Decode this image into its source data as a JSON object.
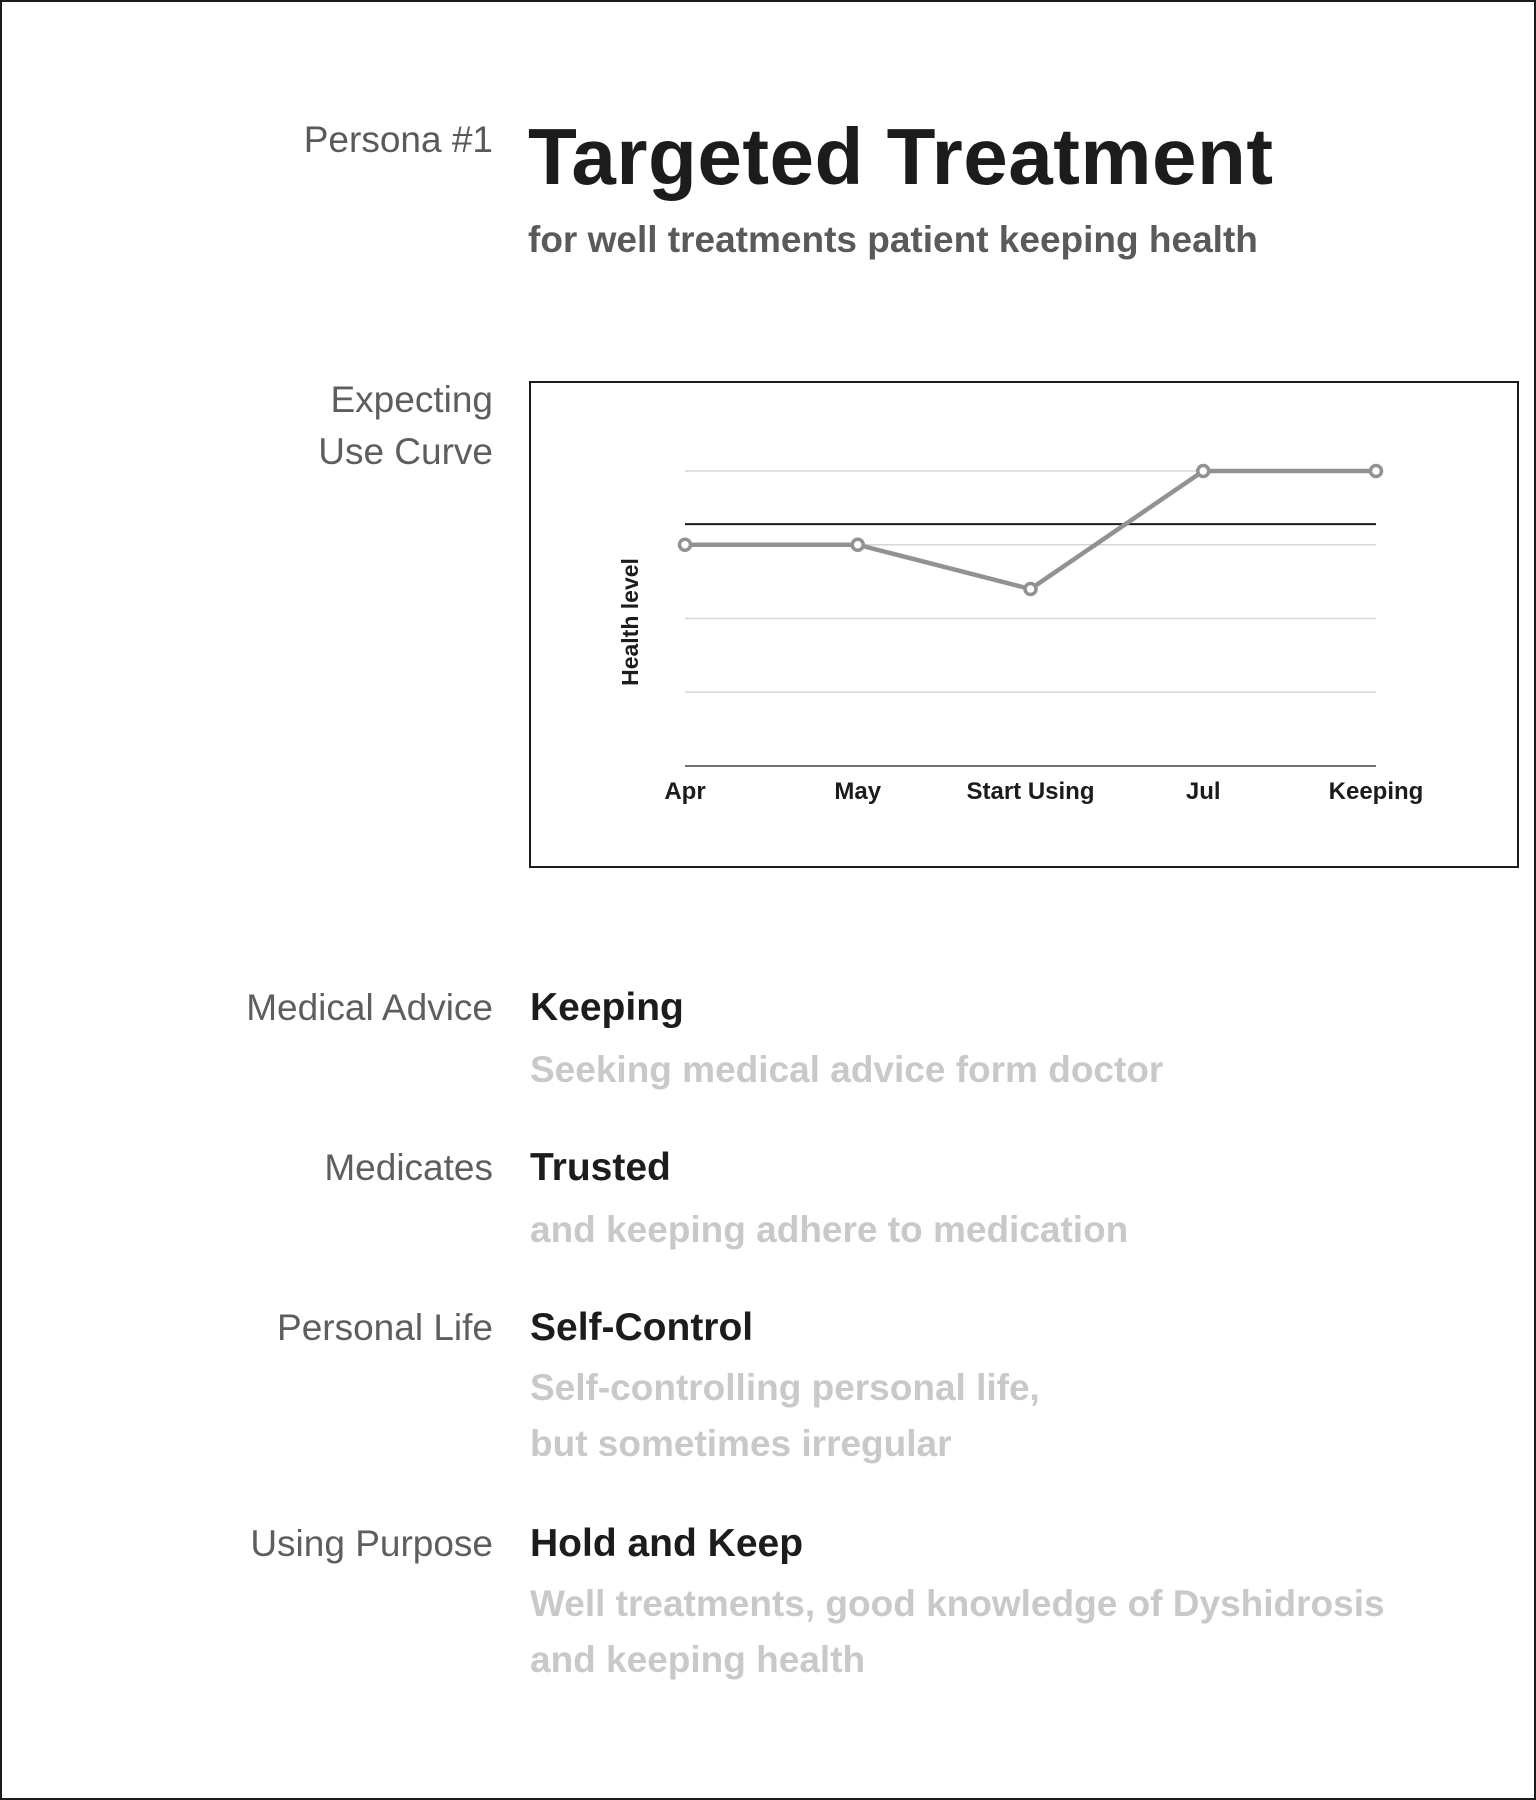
{
  "persona": {
    "label": "Persona #1"
  },
  "header": {
    "title": "Targeted Treatment",
    "subtitle": "for well treatments patient keeping health"
  },
  "curve": {
    "label_lines": [
      "Expecting",
      "Use Curve"
    ]
  },
  "chart_data": {
    "type": "line",
    "categories": [
      "Apr",
      "May",
      "Start Using",
      "Jul",
      "Keeping"
    ],
    "series": [
      {
        "values": [
          3,
          3,
          2.4,
          4,
          4
        ]
      }
    ],
    "ylabel": "Health level",
    "xlabel": "",
    "ylim": [
      0,
      4
    ],
    "reference_line": 3.28,
    "grid": true,
    "colors": {
      "line": "#929292",
      "grid": "#d6d6d6",
      "reference": "#1c1c1c",
      "axis": "#1c1c1c"
    }
  },
  "sections": [
    {
      "label": "Medical Advice",
      "value": "Keeping",
      "description": [
        "Seeking medical advice form doctor"
      ]
    },
    {
      "label": "Medicates",
      "value": "Trusted",
      "description": [
        "and keeping adhere to medication"
      ]
    },
    {
      "label": "Personal Life",
      "value": "Self-Control",
      "description": [
        "Self-controlling personal life,",
        "but sometimes irregular"
      ]
    },
    {
      "label": "Using Purpose",
      "value": "Hold and Keep",
      "description": [
        "Well treatments, good knowledge of Dyshidrosis",
        "and keeping health"
      ]
    }
  ]
}
